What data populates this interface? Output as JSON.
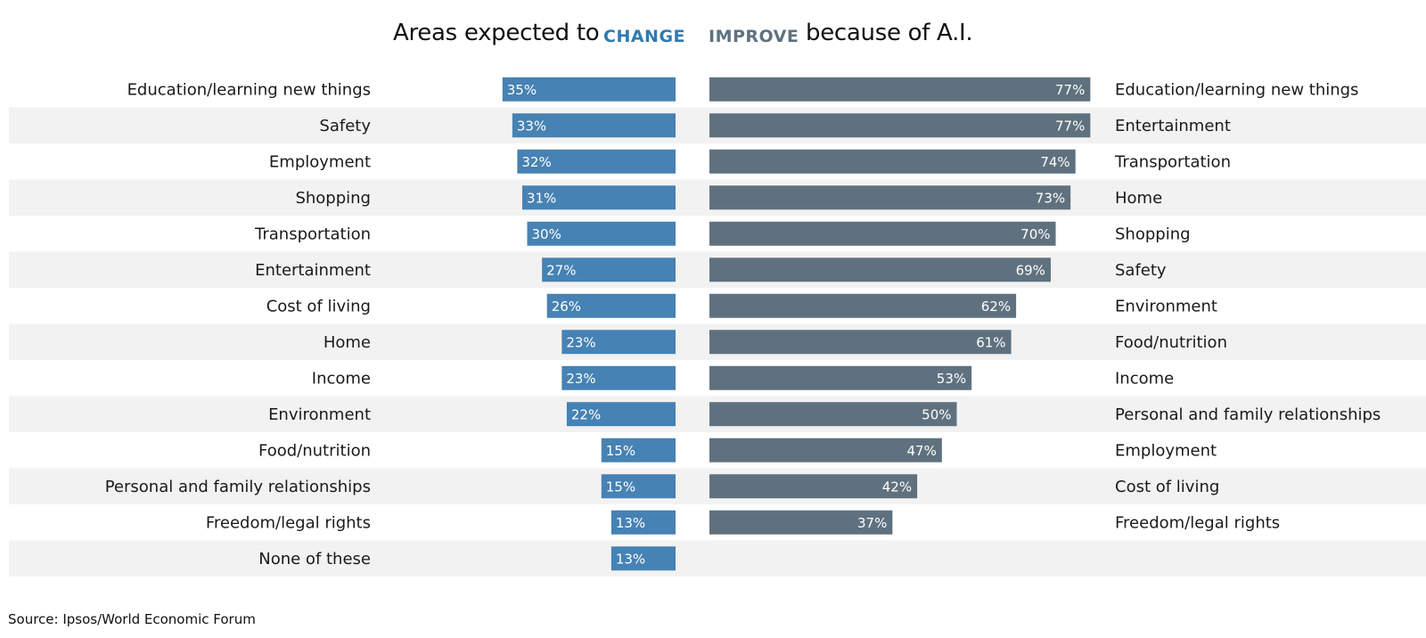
{
  "title": {
    "prefix": "Areas expected to",
    "change_key": "CHANGE",
    "improve_key": "IMPROVE",
    "suffix": "because of A.I."
  },
  "source": "Source: Ipsos/World Economic Forum",
  "colors": {
    "change": "#4682b4",
    "improve": "#5f717e",
    "change_key_text": "#2f7bb0",
    "improve_key_text": "#5f717e",
    "row_band": "#f2f2f2"
  },
  "chart_data": [
    {
      "type": "bar",
      "orientation": "horizontal",
      "name": "CHANGE",
      "unit": "%",
      "xlim": [
        0,
        100
      ],
      "categories": [
        "Education/learning new things",
        "Safety",
        "Employment",
        "Shopping",
        "Transportation",
        "Entertainment",
        "Cost of living",
        "Home",
        "Income",
        "Environment",
        "Food/nutrition",
        "Personal and family relationships",
        "Freedom/legal rights",
        "None of these"
      ],
      "values": [
        35,
        33,
        32,
        31,
        30,
        27,
        26,
        23,
        23,
        22,
        15,
        15,
        13,
        13
      ],
      "labels": [
        "35%",
        "33%",
        "32%",
        "31%",
        "30%",
        "27%",
        "26%",
        "23%",
        "23%",
        "22%",
        "15%",
        "15%",
        "13%",
        "13%"
      ]
    },
    {
      "type": "bar",
      "orientation": "horizontal",
      "name": "IMPROVE",
      "unit": "%",
      "xlim": [
        0,
        100
      ],
      "categories": [
        "Education/learning new things",
        "Entertainment",
        "Transportation",
        "Home",
        "Shopping",
        "Safety",
        "Environment",
        "Food/nutrition",
        "Income",
        "Personal and family relationships",
        "Employment",
        "Cost of living",
        "Freedom/legal rights"
      ],
      "values": [
        77,
        77,
        74,
        73,
        70,
        69,
        62,
        61,
        53,
        50,
        47,
        42,
        37
      ],
      "labels": [
        "77%",
        "77%",
        "74%",
        "73%",
        "70%",
        "69%",
        "62%",
        "61%",
        "53%",
        "50%",
        "47%",
        "42%",
        "37%"
      ]
    }
  ]
}
